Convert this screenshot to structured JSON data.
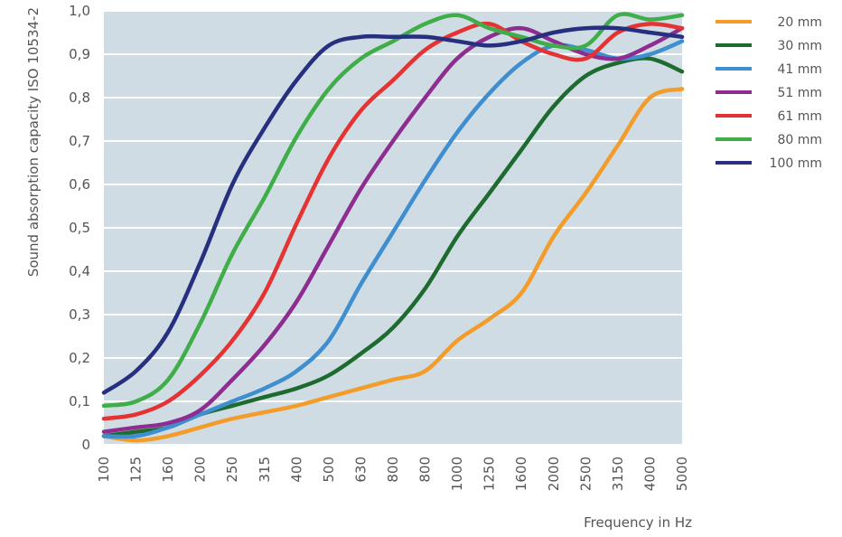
{
  "chart_data": {
    "type": "line",
    "title": "",
    "xlabel": "Frequency in Hz",
    "ylabel": "Sound absorption capacity ISO 10534-2",
    "categories": [
      "100",
      "125",
      "160",
      "200",
      "250",
      "315",
      "400",
      "500",
      "630",
      "800",
      "800",
      "1000",
      "1250",
      "1600",
      "2000",
      "2500",
      "3150",
      "4000",
      "5000"
    ],
    "y_ticks": [
      "0",
      "0,1",
      "0,2",
      "0,3",
      "0,4",
      "0,5",
      "0,6",
      "0,7",
      "0,8",
      "0,9",
      "1,0"
    ],
    "ylim": [
      0,
      1.0
    ],
    "grid": true,
    "legend_position": "right",
    "series": [
      {
        "name": "20 mm",
        "color": "#F39C2A",
        "values": [
          0.02,
          0.01,
          0.02,
          0.04,
          0.06,
          0.075,
          0.09,
          0.11,
          0.13,
          0.15,
          0.17,
          0.24,
          0.29,
          0.35,
          0.48,
          0.58,
          0.69,
          0.8,
          0.82
        ]
      },
      {
        "name": "30 mm",
        "color": "#1E6B2F",
        "values": [
          0.02,
          0.03,
          0.04,
          0.07,
          0.09,
          0.11,
          0.13,
          0.16,
          0.21,
          0.27,
          0.36,
          0.48,
          0.58,
          0.68,
          0.78,
          0.85,
          0.88,
          0.89,
          0.86
        ]
      },
      {
        "name": "41 mm",
        "color": "#3E8ED0",
        "values": [
          0.02,
          0.02,
          0.04,
          0.07,
          0.1,
          0.13,
          0.17,
          0.24,
          0.37,
          0.49,
          0.61,
          0.72,
          0.81,
          0.88,
          0.92,
          0.91,
          0.89,
          0.9,
          0.93
        ]
      },
      {
        "name": "51 mm",
        "color": "#8E2D8F",
        "values": [
          0.03,
          0.04,
          0.05,
          0.08,
          0.15,
          0.23,
          0.33,
          0.46,
          0.59,
          0.7,
          0.8,
          0.89,
          0.94,
          0.96,
          0.93,
          0.9,
          0.89,
          0.92,
          0.96
        ]
      },
      {
        "name": "61 mm",
        "color": "#E53232",
        "values": [
          0.06,
          0.07,
          0.1,
          0.16,
          0.24,
          0.35,
          0.51,
          0.66,
          0.77,
          0.84,
          0.91,
          0.95,
          0.97,
          0.93,
          0.9,
          0.89,
          0.95,
          0.97,
          0.96
        ]
      },
      {
        "name": "80 mm",
        "color": "#3FAE49",
        "values": [
          0.09,
          0.1,
          0.15,
          0.28,
          0.44,
          0.57,
          0.71,
          0.82,
          0.89,
          0.93,
          0.97,
          0.99,
          0.96,
          0.94,
          0.92,
          0.92,
          0.99,
          0.98,
          0.99
        ]
      },
      {
        "name": "100 mm",
        "color": "#26307E",
        "values": [
          0.12,
          0.17,
          0.26,
          0.42,
          0.6,
          0.73,
          0.84,
          0.92,
          0.94,
          0.94,
          0.94,
          0.93,
          0.92,
          0.93,
          0.95,
          0.96,
          0.96,
          0.95,
          0.94
        ]
      }
    ]
  }
}
